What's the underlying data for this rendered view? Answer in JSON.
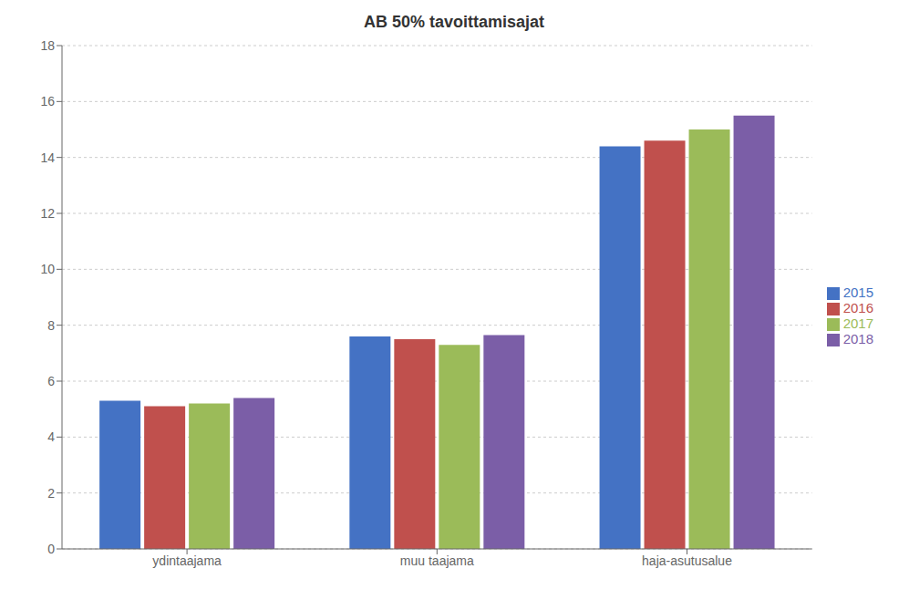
{
  "chart_data": {
    "type": "bar",
    "title": "AB 50% tavoittamisajat",
    "categories": [
      "ydintaajama",
      "muu taajama",
      "haja-asutusalue"
    ],
    "series": [
      {
        "name": "2015",
        "color": "#4472C4",
        "values": [
          5.3,
          7.6,
          14.4
        ]
      },
      {
        "name": "2016",
        "color": "#C0504D",
        "values": [
          5.1,
          7.5,
          14.6
        ]
      },
      {
        "name": "2017",
        "color": "#9BBB59",
        "values": [
          5.2,
          7.3,
          15.0
        ]
      },
      {
        "name": "2018",
        "color": "#7B5EA7",
        "values": [
          5.4,
          7.65,
          15.5
        ]
      }
    ],
    "ylim": [
      0,
      18
    ],
    "yticks": [
      0,
      2,
      4,
      6,
      8,
      10,
      12,
      14,
      16,
      18
    ],
    "grid": true,
    "legend": "right"
  }
}
